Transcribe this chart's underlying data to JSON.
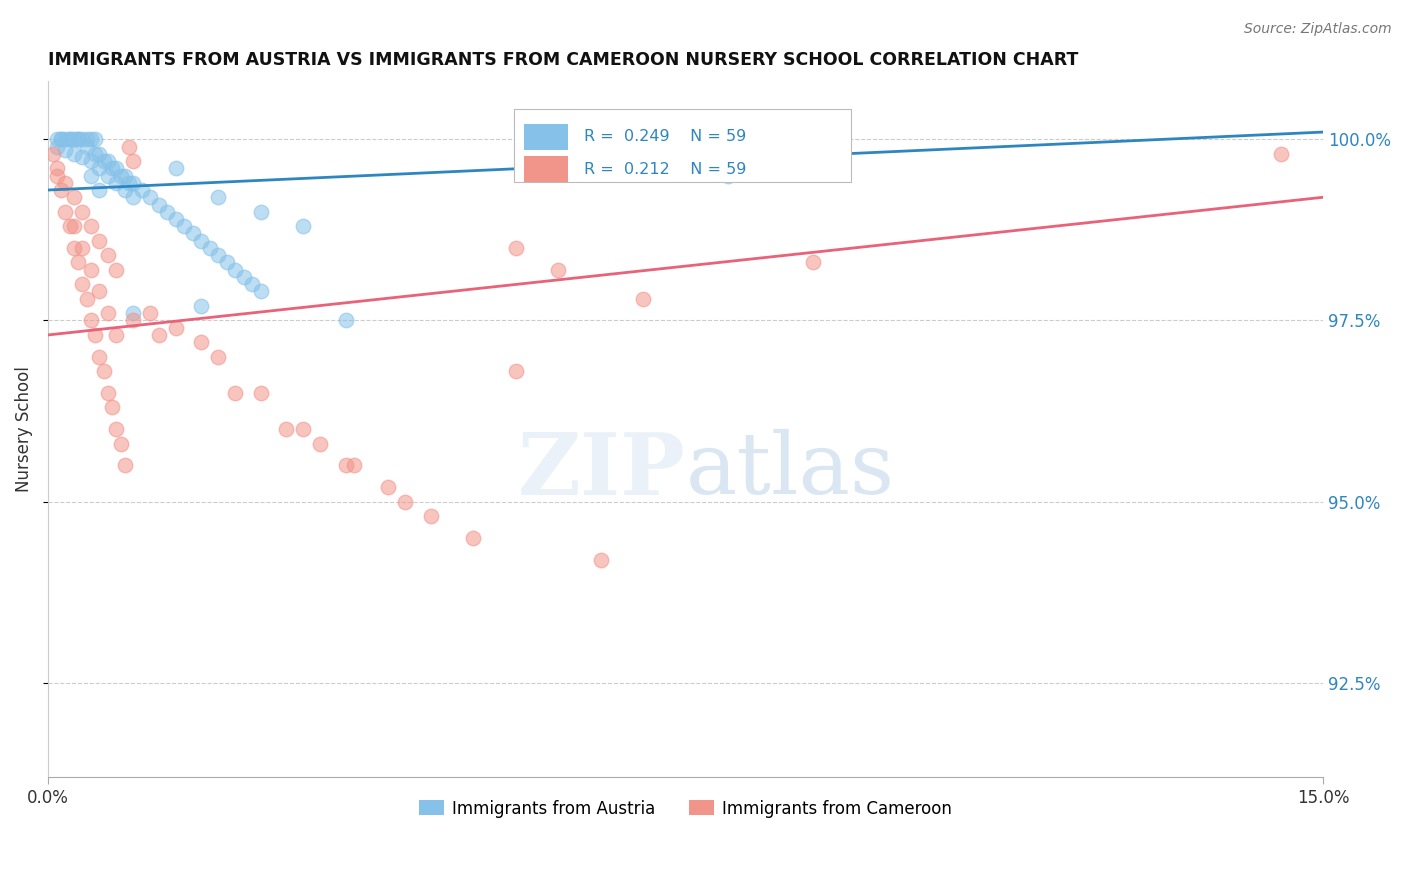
{
  "title": "IMMIGRANTS FROM AUSTRIA VS IMMIGRANTS FROM CAMEROON NURSERY SCHOOL CORRELATION CHART",
  "source": "Source: ZipAtlas.com",
  "ylabel": "Nursery School",
  "y_ticks": [
    92.5,
    95.0,
    97.5,
    100.0
  ],
  "y_tick_labels": [
    "92.5%",
    "95.0%",
    "97.5%",
    "100.0%"
  ],
  "x_min": 0.0,
  "x_max": 15.0,
  "y_min": 91.2,
  "y_max": 100.8,
  "austria_color": "#85C1E9",
  "cameroon_color": "#F1948A",
  "austria_line_color": "#2E86C1",
  "cameroon_line_color": "#E8627A",
  "legend_label_austria": "Immigrants from Austria",
  "legend_label_cameroon": "Immigrants from Cameroon",
  "R_austria": 0.249,
  "N_austria": 59,
  "R_cameroon": 0.212,
  "N_cameroon": 59,
  "austria_x": [
    0.1,
    0.15,
    0.2,
    0.25,
    0.3,
    0.35,
    0.4,
    0.45,
    0.5,
    0.55,
    0.1,
    0.2,
    0.3,
    0.4,
    0.5,
    0.6,
    0.7,
    0.8,
    0.9,
    1.0,
    0.15,
    0.25,
    0.35,
    0.45,
    0.55,
    0.65,
    0.75,
    0.85,
    0.95,
    0.6,
    0.7,
    0.8,
    0.9,
    1.0,
    1.1,
    1.2,
    1.3,
    1.4,
    1.5,
    1.6,
    1.7,
    1.8,
    1.9,
    2.0,
    2.1,
    2.2,
    2.3,
    2.4,
    2.5,
    0.5,
    0.6,
    1.5,
    2.0,
    2.5,
    3.0,
    8.0,
    1.0,
    1.8,
    3.5
  ],
  "austria_y": [
    100.0,
    100.0,
    100.0,
    100.0,
    100.0,
    100.0,
    100.0,
    100.0,
    100.0,
    100.0,
    99.9,
    99.85,
    99.8,
    99.75,
    99.7,
    99.6,
    99.5,
    99.4,
    99.3,
    99.2,
    100.0,
    100.0,
    100.0,
    99.9,
    99.8,
    99.7,
    99.6,
    99.5,
    99.4,
    99.8,
    99.7,
    99.6,
    99.5,
    99.4,
    99.3,
    99.2,
    99.1,
    99.0,
    98.9,
    98.8,
    98.7,
    98.6,
    98.5,
    98.4,
    98.3,
    98.2,
    98.1,
    98.0,
    97.9,
    99.5,
    99.3,
    99.6,
    99.2,
    99.0,
    98.8,
    99.5,
    97.6,
    97.7,
    97.5
  ],
  "cameroon_x": [
    0.05,
    0.1,
    0.15,
    0.2,
    0.25,
    0.3,
    0.35,
    0.4,
    0.45,
    0.5,
    0.55,
    0.6,
    0.65,
    0.7,
    0.75,
    0.8,
    0.85,
    0.9,
    0.95,
    1.0,
    0.1,
    0.2,
    0.3,
    0.4,
    0.5,
    0.6,
    0.7,
    0.8,
    1.2,
    1.5,
    1.8,
    2.0,
    2.5,
    3.0,
    3.5,
    4.0,
    4.5,
    5.0,
    5.5,
    6.0,
    7.0,
    8.0,
    9.0,
    14.5,
    1.0,
    1.3,
    2.2,
    2.8,
    3.2,
    3.6,
    4.2,
    5.5,
    6.5,
    0.3,
    0.4,
    0.5,
    0.6,
    0.7,
    0.8
  ],
  "cameroon_y": [
    99.8,
    99.5,
    99.3,
    99.0,
    98.8,
    98.5,
    98.3,
    98.0,
    97.8,
    97.5,
    97.3,
    97.0,
    96.8,
    96.5,
    96.3,
    96.0,
    95.8,
    95.5,
    99.9,
    99.7,
    99.6,
    99.4,
    99.2,
    99.0,
    98.8,
    98.6,
    98.4,
    98.2,
    97.6,
    97.4,
    97.2,
    97.0,
    96.5,
    96.0,
    95.5,
    95.2,
    94.8,
    94.5,
    98.5,
    98.2,
    97.8,
    99.8,
    98.3,
    99.8,
    97.5,
    97.3,
    96.5,
    96.0,
    95.8,
    95.5,
    95.0,
    96.8,
    94.2,
    98.8,
    98.5,
    98.2,
    97.9,
    97.6,
    97.3
  ]
}
